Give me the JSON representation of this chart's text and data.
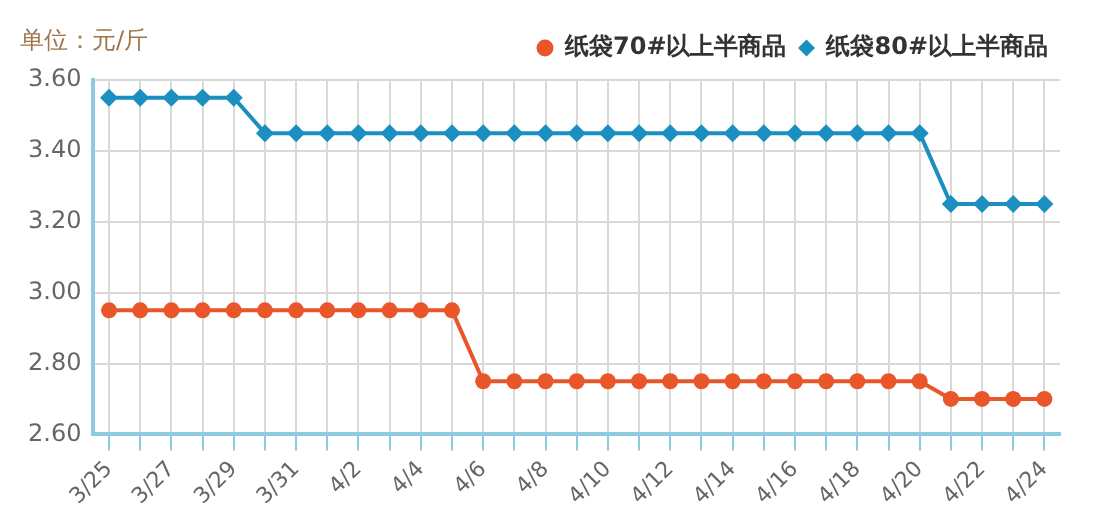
{
  "chart_data": {
    "type": "line",
    "annotations": [
      "单位：元/斤"
    ],
    "categories": [
      "3/25",
      null,
      "3/27",
      null,
      "3/29",
      null,
      "3/31",
      null,
      "4/2",
      null,
      "4/4",
      null,
      "4/6",
      null,
      "4/8",
      null,
      "4/10",
      null,
      "4/12",
      null,
      "4/14",
      null,
      "4/16",
      null,
      "4/18",
      null,
      "4/20",
      null,
      "4/22",
      null,
      "4/24"
    ],
    "series": [
      {
        "name": "纸袋70#以上半商品",
        "color": "#e8562a",
        "marker": "circle",
        "values": [
          2.95,
          2.95,
          2.95,
          2.95,
          2.95,
          2.95,
          2.95,
          2.95,
          2.95,
          2.95,
          2.95,
          2.95,
          2.75,
          2.75,
          2.75,
          2.75,
          2.75,
          2.75,
          2.75,
          2.75,
          2.75,
          2.75,
          2.75,
          2.75,
          2.75,
          2.75,
          2.75,
          2.7,
          2.7,
          2.7,
          2.7
        ]
      },
      {
        "name": "纸袋80#以上半商品",
        "color": "#1a8fc0",
        "marker": "diamond",
        "values": [
          3.55,
          3.55,
          3.55,
          3.55,
          3.55,
          3.45,
          3.45,
          3.45,
          3.45,
          3.45,
          3.45,
          3.45,
          3.45,
          3.45,
          3.45,
          3.45,
          3.45,
          3.45,
          3.45,
          3.45,
          3.45,
          3.45,
          3.45,
          3.45,
          3.45,
          3.45,
          3.45,
          3.25,
          3.25,
          3.25,
          3.25
        ]
      }
    ],
    "ylim": [
      2.6,
      3.6
    ],
    "yticks": [
      {
        "value": 2.6,
        "label": "2.60"
      },
      {
        "value": 2.8,
        "label": "2.80"
      },
      {
        "value": 3.0,
        "label": "3.00"
      },
      {
        "value": 3.2,
        "label": "3.20"
      },
      {
        "value": 3.4,
        "label": "3.40"
      },
      {
        "value": 3.6,
        "label": "3.60"
      }
    ],
    "grid": true,
    "legend": "top right",
    "line_style": "solid"
  }
}
